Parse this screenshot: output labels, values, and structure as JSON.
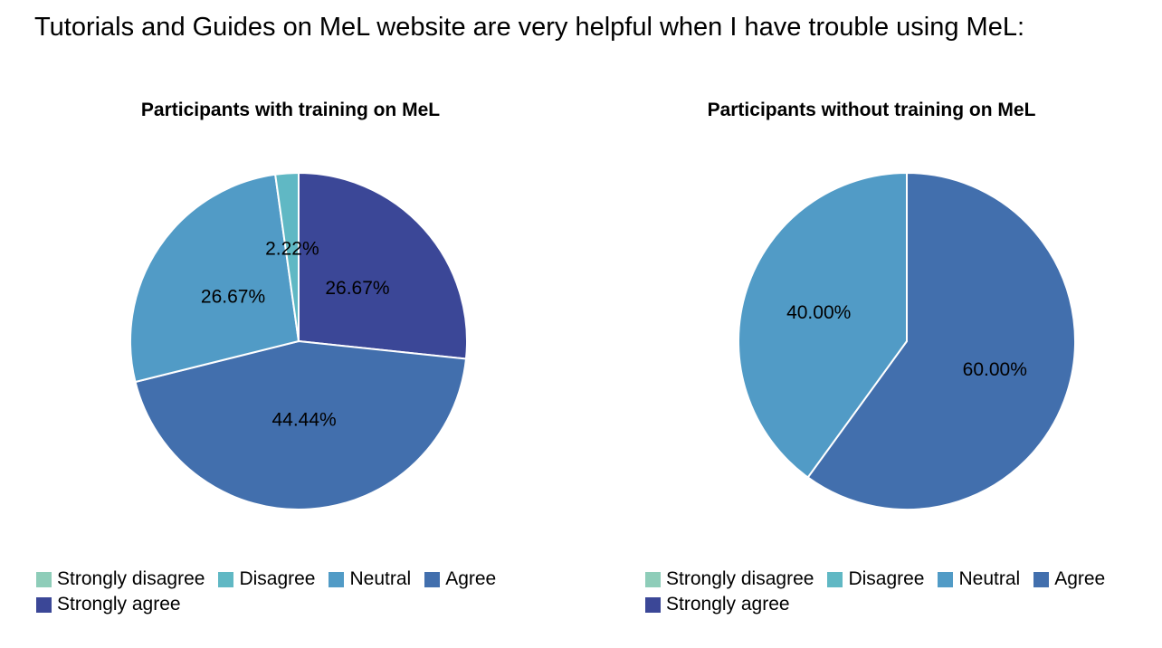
{
  "page_title": "Tutorials and Guides on MeL website are very helpful when I have trouble using MeL:",
  "legend_categories": [
    "Strongly disagree",
    "Disagree",
    "Neutral",
    "Agree",
    "Strongly agree"
  ],
  "colors": {
    "Strongly disagree": "#8ecdb9",
    "Disagree": "#60b8c4",
    "Neutral": "#519bc6",
    "Agree": "#426fad",
    "Strongly agree": "#3b4797"
  },
  "chart_data": [
    {
      "type": "pie",
      "title": "Participants with training on MeL",
      "slices": [
        {
          "name": "Strongly agree",
          "value": 26.67,
          "label": "26.67%"
        },
        {
          "name": "Agree",
          "value": 44.44,
          "label": "44.44%"
        },
        {
          "name": "Neutral",
          "value": 26.67,
          "label": "26.67%"
        },
        {
          "name": "Disagree",
          "value": 2.22,
          "label": "2.22%"
        }
      ],
      "legend": "bottom"
    },
    {
      "type": "pie",
      "title": "Participants without training on MeL",
      "slices": [
        {
          "name": "Agree",
          "value": 60.0,
          "label": "60.00%"
        },
        {
          "name": "Neutral",
          "value": 40.0,
          "label": "40.00%"
        }
      ],
      "legend": "bottom"
    }
  ]
}
